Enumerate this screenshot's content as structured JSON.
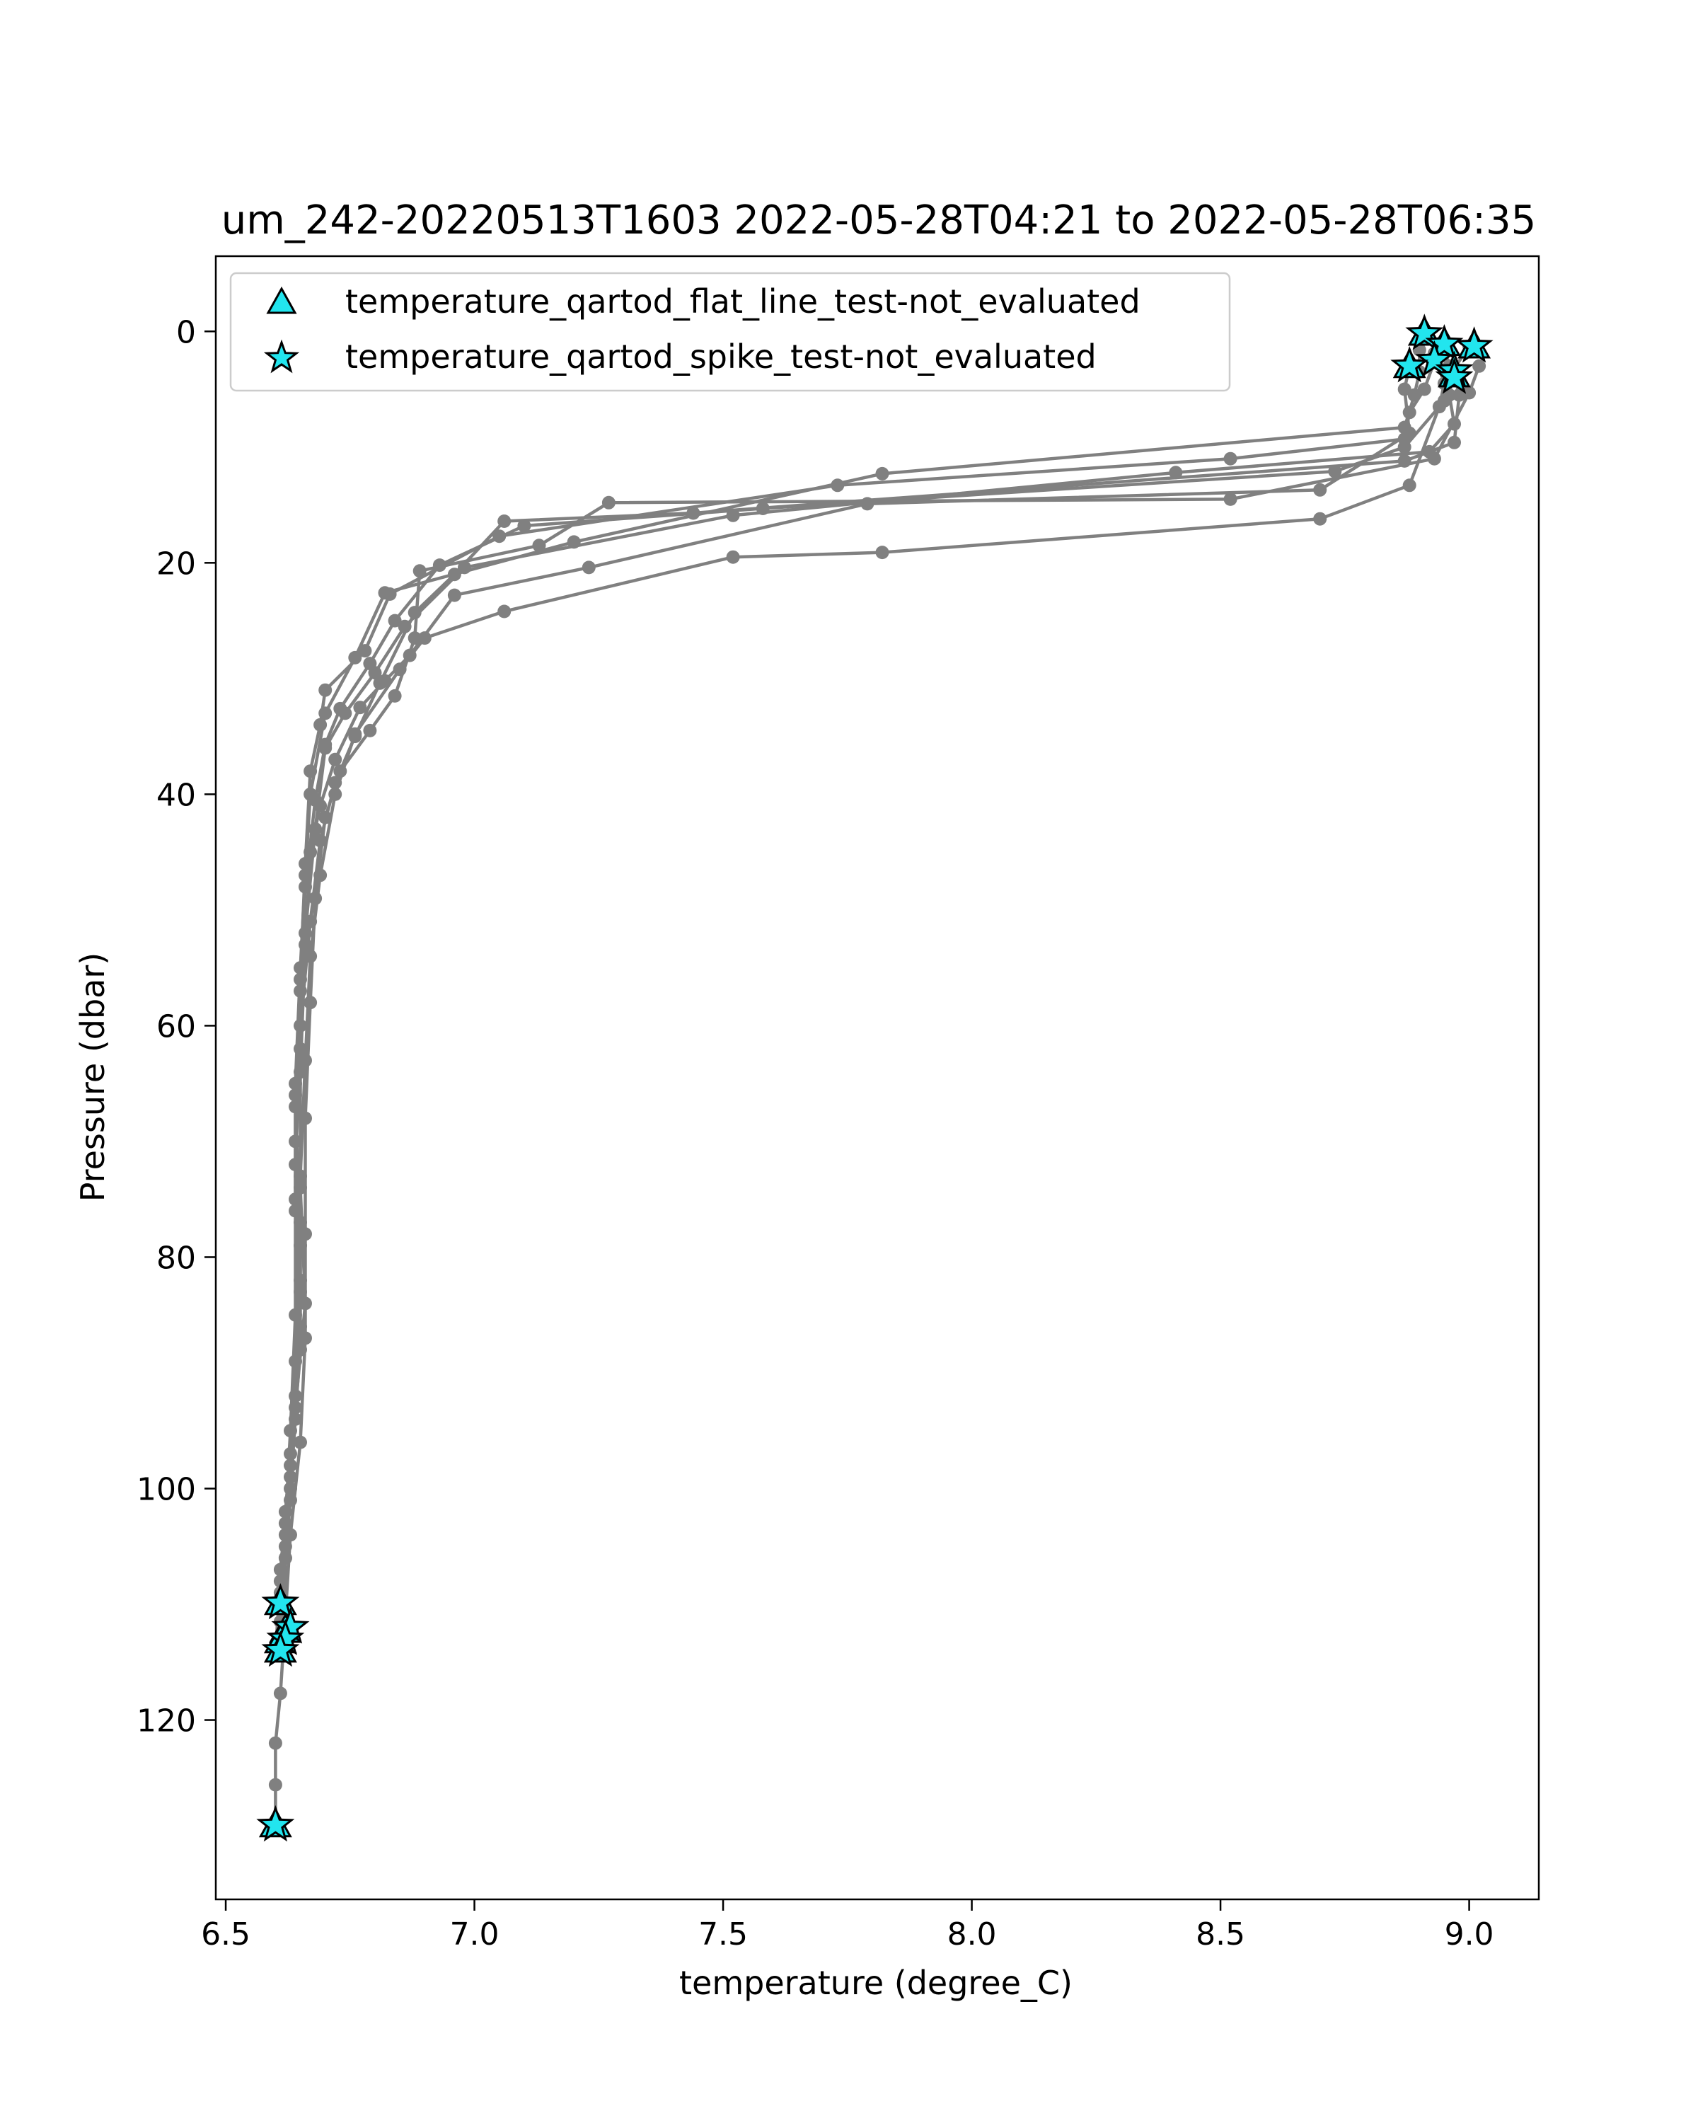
{
  "chart_data": {
    "type": "line",
    "title": "um_242-20220513T1603 2022-05-28T04:21 to 2022-05-28T06:35",
    "xlabel": "temperature (degree_C)",
    "ylabel": "Pressure (dbar)",
    "xlim": [
      6.48,
      9.14
    ],
    "ylim": [
      135.5,
      -6.5
    ],
    "y_inverted": true,
    "grid": false,
    "legend_position": "upper-left",
    "xticks": [
      6.5,
      7.0,
      7.5,
      8.0,
      8.5,
      9.0
    ],
    "xtick_labels": [
      "6.5",
      "7.0",
      "7.5",
      "8.0",
      "8.5",
      "9.0"
    ],
    "yticks": [
      0,
      20,
      40,
      60,
      80,
      100,
      120
    ],
    "ytick_labels": [
      "0",
      "20",
      "40",
      "60",
      "80",
      "100",
      "120"
    ],
    "profile_color": "#808080",
    "marker_fill": "#22e5ee",
    "marker_edge": "#000000",
    "legend": [
      {
        "label": "temperature_qartod_flat_line_test-not_evaluated",
        "marker": "triangle"
      },
      {
        "label": "temperature_qartod_spike_test-not_evaluated",
        "marker": "star"
      }
    ],
    "series": [
      {
        "points": [
          [
            8.91,
            0.2
          ],
          [
            8.9,
            1.6
          ],
          [
            8.9,
            3.5
          ],
          [
            8.89,
            5.5
          ],
          [
            8.87,
            8.3
          ],
          [
            7.82,
            12.3
          ],
          [
            7.2,
            18.2
          ],
          [
            6.82,
            22.6
          ],
          [
            6.76,
            28.2
          ],
          [
            6.7,
            33
          ],
          [
            6.67,
            40
          ],
          [
            6.66,
            47
          ],
          [
            6.65,
            55
          ],
          [
            6.64,
            65
          ],
          [
            6.64,
            75
          ],
          [
            6.64,
            85
          ],
          [
            6.63,
            95
          ],
          [
            6.62,
            103
          ],
          [
            6.61,
            110
          ]
        ]
      },
      {
        "points": [
          [
            8.95,
            1.1
          ],
          [
            8.93,
            2.6
          ],
          [
            8.91,
            5
          ],
          [
            8.88,
            7
          ],
          [
            8.87,
            9.3
          ],
          [
            8.52,
            11
          ],
          [
            7.73,
            13.3
          ],
          [
            7.05,
            17.7
          ],
          [
            6.83,
            22.7
          ],
          [
            6.78,
            27.6
          ],
          [
            6.7,
            31
          ],
          [
            6.69,
            34
          ],
          [
            6.67,
            38
          ],
          [
            6.66,
            46
          ],
          [
            6.65,
            56
          ],
          [
            6.64,
            66
          ],
          [
            6.64,
            76
          ],
          [
            6.65,
            86
          ],
          [
            6.63,
            98
          ],
          [
            6.61,
            107
          ],
          [
            6.61,
            113.2
          ]
        ]
      },
      {
        "points": [
          [
            9.0,
            1.3
          ],
          [
            8.97,
            3.2
          ],
          [
            8.96,
            5.5
          ],
          [
            8.97,
            8
          ],
          [
            8.92,
            10.4
          ],
          [
            8.41,
            12.2
          ],
          [
            7.52,
            15.9
          ],
          [
            6.98,
            20.4
          ],
          [
            6.86,
            25.5
          ],
          [
            6.8,
            29.5
          ],
          [
            6.74,
            33
          ],
          [
            6.7,
            36
          ],
          [
            6.68,
            43
          ],
          [
            6.66,
            52
          ],
          [
            6.65,
            62
          ],
          [
            6.64,
            72
          ],
          [
            6.65,
            82
          ],
          [
            6.64,
            92
          ],
          [
            6.62,
            102
          ],
          [
            6.61,
            108
          ],
          [
            6.6,
            114
          ]
        ]
      },
      {
        "points": [
          [
            8.97,
            3.8
          ],
          [
            8.98,
            5.5
          ],
          [
            8.97,
            9.6
          ],
          [
            8.87,
            11.2
          ],
          [
            7.44,
            15.7
          ],
          [
            7.06,
            16.4
          ],
          [
            6.96,
            21
          ],
          [
            6.88,
            24.3
          ],
          [
            6.81,
            30.4
          ],
          [
            6.76,
            35
          ],
          [
            6.72,
            39
          ],
          [
            6.69,
            44
          ],
          [
            6.67,
            51
          ],
          [
            6.65,
            60
          ],
          [
            6.64,
            70
          ],
          [
            6.65,
            79
          ],
          [
            6.65,
            88
          ],
          [
            6.63,
            99
          ],
          [
            6.62,
            105
          ],
          [
            6.62,
            112
          ]
        ]
      },
      {
        "points": [
          [
            9.02,
            3
          ],
          [
            9.0,
            5.3
          ],
          [
            8.93,
            11
          ],
          [
            8.52,
            14.5
          ],
          [
            7.27,
            14.8
          ],
          [
            7.13,
            18.5
          ],
          [
            6.89,
            20.7
          ],
          [
            6.88,
            26.5
          ],
          [
            6.84,
            31.5
          ],
          [
            6.79,
            34.5
          ],
          [
            6.73,
            38
          ],
          [
            6.7,
            42
          ],
          [
            6.68,
            49
          ],
          [
            6.67,
            58
          ],
          [
            6.66,
            68
          ],
          [
            6.66,
            78
          ],
          [
            6.66,
            87
          ],
          [
            6.65,
            96
          ],
          [
            6.63,
            104
          ],
          [
            6.62,
            111
          ],
          [
            6.61,
            117.7
          ],
          [
            6.6,
            122
          ],
          [
            6.6,
            125.6
          ],
          [
            6.6,
            129
          ]
        ]
      },
      {
        "points": [
          [
            8.88,
            3
          ],
          [
            8.87,
            5
          ],
          [
            8.88,
            8.8
          ],
          [
            8.7,
            13.7
          ],
          [
            7.79,
            14.9
          ],
          [
            7.23,
            20.4
          ],
          [
            6.96,
            22.8
          ],
          [
            6.87,
            28
          ],
          [
            6.82,
            30.2
          ],
          [
            6.77,
            32.5
          ],
          [
            6.72,
            37
          ],
          [
            6.69,
            41
          ],
          [
            6.67,
            45
          ],
          [
            6.66,
            53
          ],
          [
            6.65,
            64
          ],
          [
            6.65,
            74
          ],
          [
            6.66,
            84
          ],
          [
            6.64,
            93
          ],
          [
            6.63,
            101
          ],
          [
            6.62,
            106
          ],
          [
            6.61,
            111.5
          ]
        ]
      },
      {
        "points": [
          [
            8.95,
            1.4
          ],
          [
            8.96,
            3
          ],
          [
            8.95,
            6
          ],
          [
            8.87,
            10
          ],
          [
            8.73,
            12.1
          ],
          [
            7.58,
            15.3
          ],
          [
            7.1,
            16.8
          ],
          [
            6.93,
            20.2
          ],
          [
            6.84,
            25
          ],
          [
            6.79,
            28.7
          ],
          [
            6.73,
            32.6
          ],
          [
            6.7,
            35.7
          ],
          [
            6.68,
            40.5
          ],
          [
            6.66,
            48
          ],
          [
            6.65,
            57
          ],
          [
            6.64,
            67
          ],
          [
            6.65,
            77
          ],
          [
            6.64,
            89
          ],
          [
            6.63,
            97
          ],
          [
            6.62,
            104
          ],
          [
            6.61,
            109
          ]
        ]
      },
      {
        "points": [
          [
            8.93,
            1.9
          ],
          [
            8.95,
            4.5
          ],
          [
            8.94,
            6.5
          ],
          [
            8.88,
            13.3
          ],
          [
            8.7,
            16.2
          ],
          [
            7.82,
            19.1
          ],
          [
            7.52,
            19.5
          ],
          [
            7.06,
            24.2
          ],
          [
            6.9,
            26.5
          ],
          [
            6.85,
            29.2
          ],
          [
            6.76,
            34.8
          ],
          [
            6.72,
            40
          ],
          [
            6.69,
            47
          ],
          [
            6.67,
            54
          ],
          [
            6.66,
            63
          ],
          [
            6.65,
            73
          ],
          [
            6.65,
            83
          ],
          [
            6.64,
            94
          ],
          [
            6.63,
            100
          ],
          [
            6.62,
            106
          ],
          [
            6.61,
            113
          ]
        ]
      }
    ],
    "triangle_points": [
      [
        8.91,
        0.2
      ],
      [
        9.01,
        1.3
      ],
      [
        8.95,
        1.1
      ],
      [
        8.88,
        3.0
      ],
      [
        8.97,
        3.8
      ],
      [
        6.61,
        109.9
      ],
      [
        6.62,
        112.3
      ],
      [
        6.61,
        113.2
      ],
      [
        6.61,
        114.0
      ],
      [
        6.6,
        129.1
      ]
    ],
    "star_points": [
      [
        8.91,
        0.2
      ],
      [
        9.01,
        1.3
      ],
      [
        8.95,
        1.1
      ],
      [
        8.93,
        2.5
      ],
      [
        8.88,
        3.0
      ],
      [
        8.97,
        3.4
      ],
      [
        8.97,
        4.0
      ],
      [
        6.61,
        109.9
      ],
      [
        6.63,
        112.0
      ],
      [
        6.62,
        113.0
      ],
      [
        6.61,
        114.0
      ],
      [
        6.6,
        129.1
      ]
    ]
  }
}
